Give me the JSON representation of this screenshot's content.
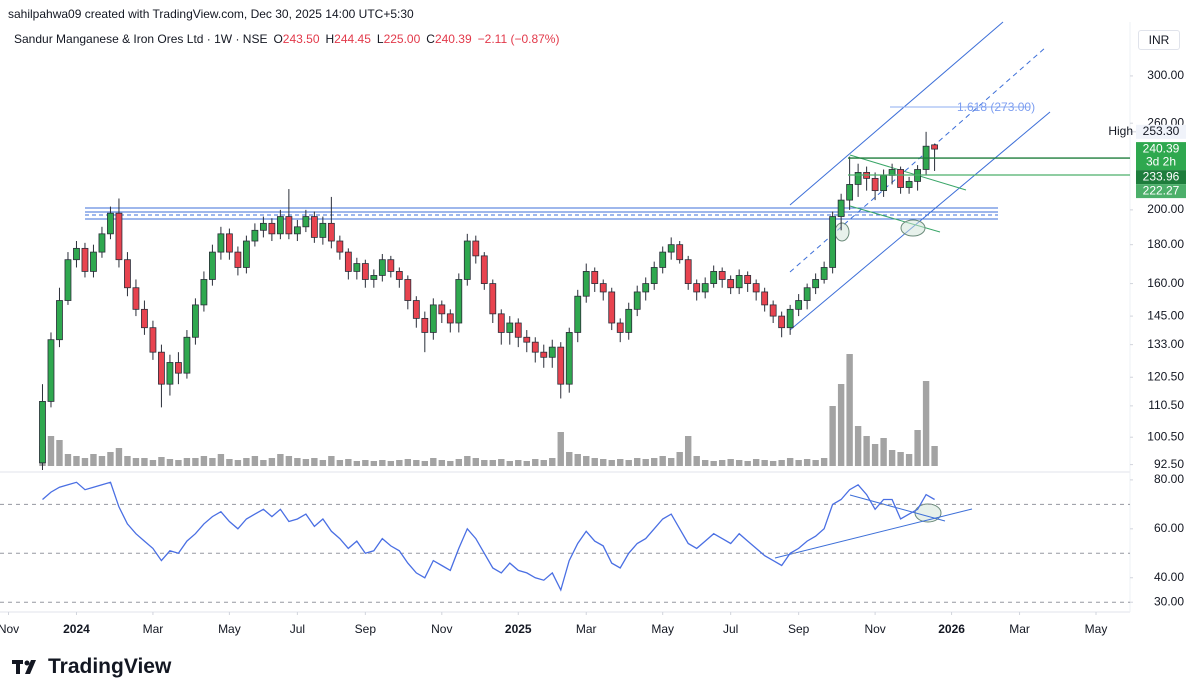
{
  "header": "sahilpahwa09 created with TradingView.com, Dec 30, 2025 14:00 UTC+5:30",
  "brand": "TradingView",
  "chart_data": {
    "type": "candlestick",
    "title": "Sandur Manganese & Iron Ores Ltd · 1W · NSE",
    "ohlc_legend": [
      {
        "key": "O",
        "text": "243.50"
      },
      {
        "key": "H",
        "text": "244.45"
      },
      {
        "key": "L",
        "text": "225.00"
      },
      {
        "key": "C",
        "text": "240.39"
      }
    ],
    "change": "−2.11 (−0.87%)",
    "currency": "INR",
    "log_scale": true,
    "colors": {
      "up": "#2fa84f",
      "down": "#e8434f"
    },
    "open": [
      93,
      112,
      135,
      152,
      172,
      178,
      166,
      176,
      186,
      198,
      172,
      158,
      148,
      140,
      130,
      118,
      126,
      122,
      136,
      150,
      162,
      176,
      186,
      176,
      168,
      182,
      188,
      192,
      186,
      196,
      186,
      190,
      196,
      184,
      192,
      182,
      176,
      166,
      170,
      162,
      164,
      172,
      166,
      162,
      152,
      144,
      138,
      150,
      146,
      142,
      162,
      182,
      174,
      160,
      146,
      138,
      142,
      136,
      134,
      130,
      128,
      132,
      118,
      138,
      154,
      166,
      160,
      156,
      142,
      138,
      148,
      156,
      160,
      168,
      176,
      180,
      172,
      160,
      156,
      160,
      166,
      162,
      158,
      164,
      160,
      156,
      150,
      145,
      140,
      148,
      152,
      158,
      162,
      168,
      196,
      206,
      216,
      224,
      220,
      212,
      222,
      226,
      214,
      218,
      226,
      243.5
    ],
    "high": [
      118,
      138,
      158,
      176,
      182,
      181,
      180,
      190,
      202,
      207,
      176,
      162,
      152,
      143,
      133,
      129,
      130,
      139,
      153,
      166,
      180,
      190,
      189,
      179,
      185,
      192,
      196,
      195,
      200,
      213,
      194,
      200,
      199,
      196,
      208,
      185,
      178,
      173,
      172,
      167,
      175,
      174,
      168,
      164,
      154,
      147,
      153,
      152,
      148,
      165,
      186,
      185,
      176,
      162,
      148,
      145,
      144,
      139,
      136,
      133,
      135,
      134,
      140,
      157,
      170,
      168,
      162,
      158,
      144,
      151,
      159,
      163,
      171,
      179,
      184,
      182,
      174,
      162,
      163,
      169,
      168,
      164,
      167,
      166,
      162,
      158,
      152,
      147,
      150,
      155,
      160,
      165,
      171,
      199,
      210,
      235,
      230,
      228,
      224,
      226,
      230,
      228,
      221,
      229,
      253.3,
      244.45
    ],
    "low": [
      91,
      110,
      132,
      150,
      168,
      163,
      163,
      173,
      183,
      168,
      154,
      145,
      137,
      127,
      110,
      114,
      118,
      120,
      133,
      147,
      159,
      172,
      172,
      164,
      165,
      179,
      184,
      182,
      183,
      183,
      182,
      187,
      181,
      180,
      178,
      172,
      162,
      162,
      158,
      158,
      161,
      163,
      158,
      148,
      140,
      130,
      135,
      142,
      138,
      138,
      159,
      170,
      157,
      142,
      133,
      133,
      132,
      130,
      126,
      124,
      124,
      113,
      115,
      134,
      151,
      156,
      152,
      139,
      134,
      135,
      145,
      152,
      157,
      165,
      172,
      170,
      157,
      152,
      153,
      158,
      158,
      155,
      155,
      156,
      152,
      147,
      142,
      136,
      137,
      145,
      148,
      155,
      160,
      165,
      188,
      200,
      208,
      212,
      206,
      208,
      216,
      210,
      210,
      212,
      222,
      225
    ],
    "close": [
      112,
      135,
      152,
      172,
      178,
      166,
      176,
      186,
      198,
      172,
      158,
      148,
      140,
      130,
      118,
      126,
      122,
      136,
      150,
      162,
      176,
      186,
      176,
      168,
      182,
      188,
      192,
      186,
      196,
      186,
      190,
      196,
      184,
      192,
      182,
      176,
      166,
      170,
      162,
      164,
      172,
      166,
      162,
      152,
      144,
      138,
      150,
      146,
      142,
      162,
      182,
      174,
      160,
      146,
      138,
      142,
      136,
      134,
      130,
      128,
      132,
      118,
      138,
      154,
      166,
      160,
      156,
      142,
      138,
      148,
      156,
      160,
      168,
      176,
      180,
      172,
      160,
      156,
      160,
      166,
      162,
      158,
      164,
      160,
      156,
      150,
      145,
      140,
      148,
      152,
      158,
      162,
      168,
      196,
      206,
      216,
      224,
      220,
      212,
      222,
      226,
      214,
      218,
      226,
      242.5,
      240.39
    ],
    "xlim": [
      -5,
      128
    ],
    "xticks": [
      {
        "value": -4,
        "label": "Nov"
      },
      {
        "value": 4,
        "label": "2024"
      },
      {
        "value": 13,
        "label": "Mar"
      },
      {
        "value": 22,
        "label": "May"
      },
      {
        "value": 30,
        "label": "Jul"
      },
      {
        "value": 38,
        "label": "Sep"
      },
      {
        "value": 47,
        "label": "Nov"
      },
      {
        "value": 56,
        "label": "2025"
      },
      {
        "value": 64,
        "label": "Mar"
      },
      {
        "value": 73,
        "label": "May"
      },
      {
        "value": 81,
        "label": "Jul"
      },
      {
        "value": 89,
        "label": "Sep"
      },
      {
        "value": 98,
        "label": "Nov"
      },
      {
        "value": 107,
        "label": "2026"
      },
      {
        "value": 115,
        "label": "Mar"
      },
      {
        "value": 124,
        "label": "May"
      }
    ],
    "ylim": [
      91,
      350
    ],
    "yticks": [
      {
        "value": 300,
        "label": "300.00"
      },
      {
        "value": 260,
        "label": "260.00"
      },
      {
        "value": 200,
        "label": "200.00"
      },
      {
        "value": 180,
        "label": "180.00"
      },
      {
        "value": 160,
        "label": "160.00"
      },
      {
        "value": 145,
        "label": "145.00"
      },
      {
        "value": 133,
        "label": "133.00"
      },
      {
        "value": 120.5,
        "label": "120.50"
      },
      {
        "value": 110.5,
        "label": "110.50"
      },
      {
        "value": 100.5,
        "label": "100.50"
      },
      {
        "value": 92.5,
        "label": "92.50"
      }
    ],
    "high_marker": {
      "label": "High",
      "value": 253.3,
      "value_label": "253.30"
    },
    "countdown": "3d 2h",
    "levels": [
      233.96,
      222.27
    ],
    "fib_label": "1.618 (273.00)",
    "volume": {
      "color": "#a3a3a3",
      "values": [
        20,
        30,
        26,
        12,
        10,
        8,
        12,
        10,
        14,
        18,
        10,
        8,
        8,
        6,
        9,
        7,
        6,
        8,
        8,
        10,
        8,
        12,
        7,
        6,
        8,
        10,
        6,
        8,
        12,
        10,
        8,
        7,
        8,
        6,
        10,
        6,
        7,
        5,
        6,
        5,
        6,
        5,
        6,
        7,
        6,
        5,
        8,
        6,
        5,
        7,
        10,
        8,
        6,
        6,
        7,
        5,
        6,
        5,
        7,
        6,
        8,
        34,
        14,
        12,
        10,
        8,
        7,
        6,
        7,
        6,
        8,
        7,
        8,
        10,
        8,
        14,
        30,
        10,
        6,
        5,
        6,
        7,
        6,
        5,
        7,
        6,
        5,
        6,
        8,
        6,
        7,
        6,
        8,
        60,
        82,
        112,
        40,
        30,
        22,
        28,
        16,
        14,
        12,
        36,
        85,
        20
      ]
    },
    "rsi": {
      "color": "#4a6fe3",
      "values": [
        72,
        75,
        77,
        78,
        79,
        76,
        77,
        78,
        79,
        69,
        62,
        58,
        55,
        52,
        47,
        51,
        50,
        55,
        58,
        62,
        65,
        67,
        63,
        60,
        64,
        66,
        68,
        65,
        68,
        63,
        64,
        66,
        61,
        64,
        59,
        56,
        52,
        55,
        50,
        51,
        56,
        53,
        51,
        46,
        42,
        40,
        47,
        45,
        43,
        52,
        60,
        56,
        50,
        44,
        42,
        46,
        43,
        42,
        40,
        39,
        42,
        35,
        47,
        54,
        59,
        55,
        53,
        46,
        44,
        50,
        54,
        56,
        60,
        64,
        66,
        60,
        54,
        52,
        55,
        58,
        56,
        54,
        58,
        55,
        52,
        49,
        47,
        45,
        50,
        52,
        55,
        57,
        60,
        70,
        72,
        76,
        78,
        74,
        68,
        72,
        72,
        64,
        66,
        68,
        74,
        72
      ],
      "ylim": [
        26,
        82
      ],
      "yticks": [
        {
          "value": 80,
          "label": "80.00"
        },
        {
          "value": 60,
          "label": "60.00"
        },
        {
          "value": 40,
          "label": "40.00"
        },
        {
          "value": 30,
          "label": "30.00"
        }
      ],
      "levels": [
        70,
        50,
        30
      ]
    }
  }
}
